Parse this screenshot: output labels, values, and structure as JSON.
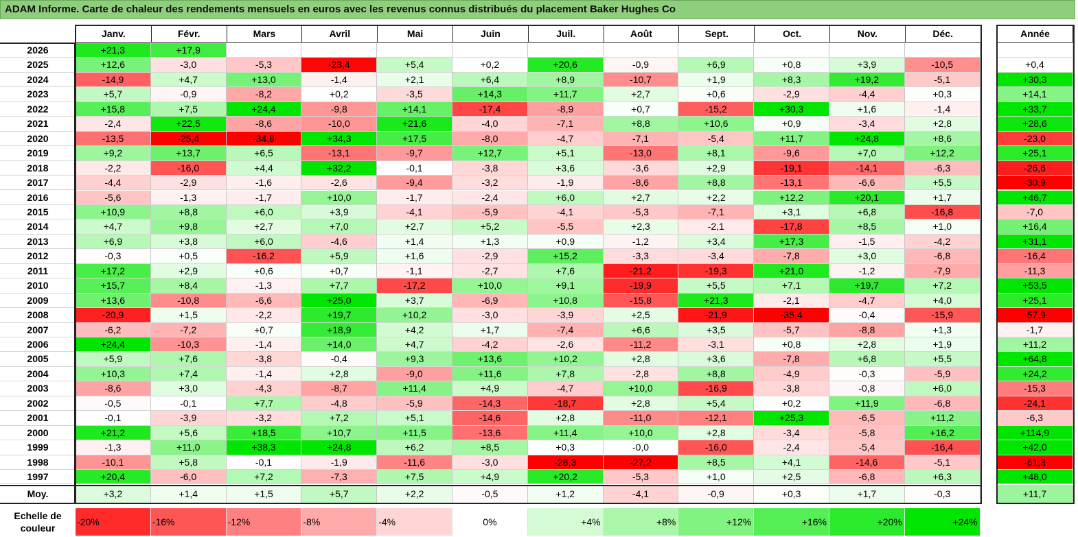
{
  "title": "ADAM Informe. Carte de chaleur des rendements mensuels en euros avec les revenus connus distribués du placement Baker Hughes Co",
  "chart_data": {
    "type": "heatmap",
    "title": "ADAM Informe. Carte de chaleur des rendements mensuels en euros avec les revenus connus distribués du placement Baker Hughes Co",
    "columns": [
      "Janv.",
      "Févr.",
      "Mars",
      "Avril",
      "Mai",
      "Juin",
      "Juil.",
      "Août",
      "Sept.",
      "Oct.",
      "Nov.",
      "Déc."
    ],
    "year_column": "Année",
    "average_label": "Moy.",
    "rows": [
      {
        "year": "2026",
        "values": [
          "+21,3",
          "+17,9",
          "",
          "",
          "",
          "",
          "",
          "",
          "",
          "",
          "",
          ""
        ],
        "annual": ""
      },
      {
        "year": "2025",
        "values": [
          "+12,6",
          "-3,0",
          "-5,3",
          "-23,4",
          "+5,4",
          "+0,2",
          "+20,6",
          "-0,9",
          "+6,9",
          "+0,8",
          "+3,9",
          "-10,5"
        ],
        "annual": "+0,4"
      },
      {
        "year": "2024",
        "values": [
          "-14,9",
          "+4,7",
          "+13,0",
          "-1,4",
          "+2,1",
          "+6,4",
          "+8,9",
          "-10,7",
          "+1,9",
          "+8,3",
          "+19,2",
          "-5,1"
        ],
        "annual": "+30,3"
      },
      {
        "year": "2023",
        "values": [
          "+5,7",
          "-0,9",
          "-8,2",
          "+0,2",
          "-3,5",
          "+14,3",
          "+11,7",
          "+2,7",
          "+0,6",
          "-2,9",
          "-4,4",
          "+0,3"
        ],
        "annual": "+14,1"
      },
      {
        "year": "2022",
        "values": [
          "+15,8",
          "+7,5",
          "+24,4",
          "-9,8",
          "+14,1",
          "-17,4",
          "-8,9",
          "+0,7",
          "-15,2",
          "+30,3",
          "+1,6",
          "-1,4"
        ],
        "annual": "+33,7"
      },
      {
        "year": "2021",
        "values": [
          "-2,4",
          "+22,5",
          "-8,6",
          "-10,0",
          "+21,6",
          "-4,0",
          "-7,1",
          "+8,8",
          "+10,6",
          "+0,9",
          "-3,4",
          "+2,8"
        ],
        "annual": "+28,6"
      },
      {
        "year": "2020",
        "values": [
          "-13,5",
          "-25,4",
          "-34,8",
          "+34,3",
          "+17,5",
          "-8,0",
          "-4,7",
          "-7,1",
          "-5,4",
          "+11,7",
          "+24,8",
          "+8,6"
        ],
        "annual": "-23,0"
      },
      {
        "year": "2019",
        "values": [
          "+9,2",
          "+13,7",
          "+6,5",
          "-13,1",
          "-9,7",
          "+12,7",
          "+5,1",
          "-13,0",
          "+8,1",
          "-9,6",
          "+7,0",
          "+12,2"
        ],
        "annual": "+25,1"
      },
      {
        "year": "2018",
        "values": [
          "-2,2",
          "-16,0",
          "+4,4",
          "+32,2",
          "-0,1",
          "-3,8",
          "+3,6",
          "-3,6",
          "+2,9",
          "-19,1",
          "-14,1",
          "-6,3"
        ],
        "annual": "-26,6"
      },
      {
        "year": "2017",
        "values": [
          "-4,4",
          "-2,9",
          "-1,6",
          "-2,6",
          "-9,4",
          "-3,2",
          "-1,9",
          "-8,6",
          "+8,8",
          "-13,1",
          "-6,6",
          "+5,5"
        ],
        "annual": "-30,9"
      },
      {
        "year": "2016",
        "values": [
          "-5,6",
          "-1,3",
          "-1,7",
          "+10,0",
          "-1,7",
          "-2,4",
          "+6,0",
          "+2,7",
          "+2,2",
          "+12,2",
          "+20,1",
          "+1,7"
        ],
        "annual": "+46,7"
      },
      {
        "year": "2015",
        "values": [
          "+10,9",
          "+8,8",
          "+6,0",
          "+3,9",
          "-4,1",
          "-5,9",
          "-4,1",
          "-5,3",
          "-7,1",
          "+3,1",
          "+6,8",
          "-16,8"
        ],
        "annual": "-7,0"
      },
      {
        "year": "2014",
        "values": [
          "+4,7",
          "+9,8",
          "+2,7",
          "+7,0",
          "+2,7",
          "+5,2",
          "-5,5",
          "+2,3",
          "-2,1",
          "-17,8",
          "+8,5",
          "+1,0"
        ],
        "annual": "+16,4"
      },
      {
        "year": "2013",
        "values": [
          "+6,9",
          "+3,8",
          "+6,0",
          "-4,6",
          "+1,4",
          "+1,3",
          "+0,9",
          "-1,2",
          "+3,4",
          "+17,3",
          "-1,5",
          "-4,2"
        ],
        "annual": "+31,1"
      },
      {
        "year": "2012",
        "values": [
          "-0,3",
          "+0,5",
          "-16,2",
          "+5,9",
          "+1,6",
          "-2,9",
          "+15,2",
          "-3,3",
          "-3,4",
          "-7,8",
          "+3,0",
          "-6,8"
        ],
        "annual": "-16,4"
      },
      {
        "year": "2011",
        "values": [
          "+17,2",
          "+2,9",
          "+0,6",
          "+0,7",
          "-1,1",
          "-2,7",
          "+7,6",
          "-21,2",
          "-19,3",
          "+21,0",
          "-1,2",
          "-7,9"
        ],
        "annual": "-11,3"
      },
      {
        "year": "2010",
        "values": [
          "+15,7",
          "+8,4",
          "-1,3",
          "+7,7",
          "-17,2",
          "+10,0",
          "+9,1",
          "-19,9",
          "+5,5",
          "+7,1",
          "+19,7",
          "+7,2"
        ],
        "annual": "+53,5"
      },
      {
        "year": "2009",
        "values": [
          "+13,6",
          "-10,8",
          "-6,6",
          "+25,0",
          "+3,7",
          "-6,9",
          "+10,8",
          "-15,8",
          "+21,3",
          "-2,1",
          "-4,7",
          "+4,0"
        ],
        "annual": "+25,1"
      },
      {
        "year": "2008",
        "values": [
          "-20,9",
          "+1,5",
          "-2,2",
          "+19,7",
          "+10,2",
          "-3,0",
          "-3,9",
          "+2,5",
          "-21,9",
          "-35,4",
          "-0,4",
          "-15,9"
        ],
        "annual": "-57,9"
      },
      {
        "year": "2007",
        "values": [
          "-6,2",
          "-7,2",
          "+0,7",
          "+18,9",
          "+4,2",
          "+1,7",
          "-7,4",
          "+6,6",
          "+3,5",
          "-5,7",
          "-8,8",
          "+1,3"
        ],
        "annual": "-1,7"
      },
      {
        "year": "2006",
        "values": [
          "+24,4",
          "-10,3",
          "-1,4",
          "+14,0",
          "+4,7",
          "-4,2",
          "-2,6",
          "-11,2",
          "-3,1",
          "+0,8",
          "+2,8",
          "+1,9"
        ],
        "annual": "+11,2"
      },
      {
        "year": "2005",
        "values": [
          "+5,9",
          "+7,6",
          "-3,8",
          "-0,4",
          "+9,3",
          "+13,6",
          "+10,2",
          "+2,8",
          "+3,6",
          "-7,8",
          "+6,8",
          "+5,5"
        ],
        "annual": "+64,8"
      },
      {
        "year": "2004",
        "values": [
          "+10,3",
          "+7,4",
          "-1,4",
          "+2,8",
          "-9,0",
          "+11,6",
          "+7,8",
          "-2,8",
          "+8,8",
          "-4,9",
          "-0,3",
          "-5,9"
        ],
        "annual": "+24,2"
      },
      {
        "year": "2003",
        "values": [
          "-8,6",
          "+3,0",
          "-4,3",
          "-8,7",
          "+11,4",
          "+4,9",
          "-4,7",
          "+10,0",
          "-16,9",
          "-3,8",
          "-0,8",
          "+6,0"
        ],
        "annual": "-15,3"
      },
      {
        "year": "2002",
        "values": [
          "-0,5",
          "-0,1",
          "+7,7",
          "-4,8",
          "-5,9",
          "-14,3",
          "-18,7",
          "+2,8",
          "+5,4",
          "+0,2",
          "+11,9",
          "-6,8"
        ],
        "annual": "-24,1"
      },
      {
        "year": "2001",
        "values": [
          "-0,1",
          "-3,9",
          "-3,2",
          "+7,2",
          "+5,1",
          "-14,6",
          "+2,8",
          "-11,0",
          "-12,1",
          "+25,3",
          "-6,5",
          "+11,2"
        ],
        "annual": "-6,3"
      },
      {
        "year": "2000",
        "values": [
          "+21,2",
          "+5,6",
          "+18,5",
          "+10,7",
          "+11,5",
          "-13,6",
          "+11,4",
          "+10,0",
          "+2,8",
          "-3,4",
          "-5,8",
          "+16,2"
        ],
        "annual": "+114,9"
      },
      {
        "year": "1999",
        "values": [
          "-1,3",
          "+11,0",
          "+38,3",
          "+24,8",
          "+6,2",
          "+8,5",
          "+0,3",
          "-0,0",
          "-16,0",
          "-2,4",
          "-5,4",
          "-16,4"
        ],
        "annual": "+42,0"
      },
      {
        "year": "1998",
        "values": [
          "-10,1",
          "+5,8",
          "-0,1",
          "-1,9",
          "-11,6",
          "-3,0",
          "-28,3",
          "-27,2",
          "+8,5",
          "+4,1",
          "-14,6",
          "-5,1"
        ],
        "annual": "-61,3"
      },
      {
        "year": "1997",
        "values": [
          "+20,4",
          "-6,0",
          "+7,2",
          "-7,3",
          "+7,5",
          "+4,9",
          "+20,2",
          "-5,3",
          "+1,0",
          "+2,5",
          "-6,8",
          "+6,3"
        ],
        "annual": "+48,0"
      }
    ],
    "average": {
      "values": [
        "+3,2",
        "+1,4",
        "+1,5",
        "+5,7",
        "+2,2",
        "-0,5",
        "+1,2",
        "-4,1",
        "-0,9",
        "+0,3",
        "+1,7",
        "-0,3"
      ],
      "annual": "+11,7"
    },
    "scale_label": "Echelle de couleur",
    "scale": [
      "-20%",
      "-16%",
      "-12%",
      "-8%",
      "-4%",
      "0%",
      "+4%",
      "+8%",
      "+12%",
      "+16%",
      "+20%",
      "+24%"
    ],
    "colors": {
      "negative_max": "#ff0000",
      "neutral": "#ffffff",
      "positive_max": "#00e600",
      "title_bar": "#8fce7c"
    }
  }
}
